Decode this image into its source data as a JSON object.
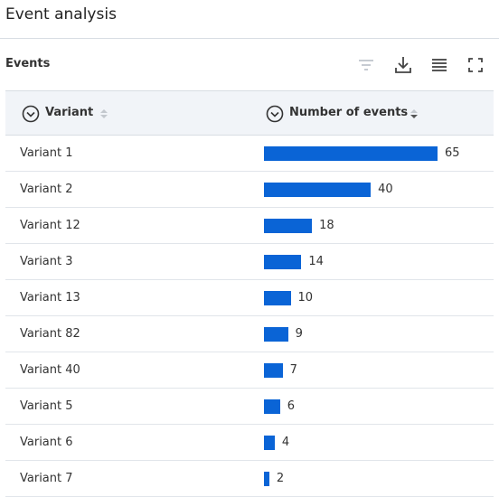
{
  "header": {
    "title": "Event analysis"
  },
  "panel": {
    "title": "Events"
  },
  "table": {
    "columns": [
      "Variant",
      "Number of events"
    ],
    "bar_color": "#0a64d6",
    "rows": [
      {
        "label": "Variant 1",
        "value": 65
      },
      {
        "label": "Variant 2",
        "value": 40
      },
      {
        "label": "Variant 12",
        "value": 18
      },
      {
        "label": "Variant 3",
        "value": 14
      },
      {
        "label": "Variant 13",
        "value": 10
      },
      {
        "label": "Variant 82",
        "value": 9
      },
      {
        "label": "Variant 40",
        "value": 7
      },
      {
        "label": "Variant 5",
        "value": 6
      },
      {
        "label": "Variant 6",
        "value": 4
      },
      {
        "label": "Variant 7",
        "value": 2
      }
    ]
  }
}
